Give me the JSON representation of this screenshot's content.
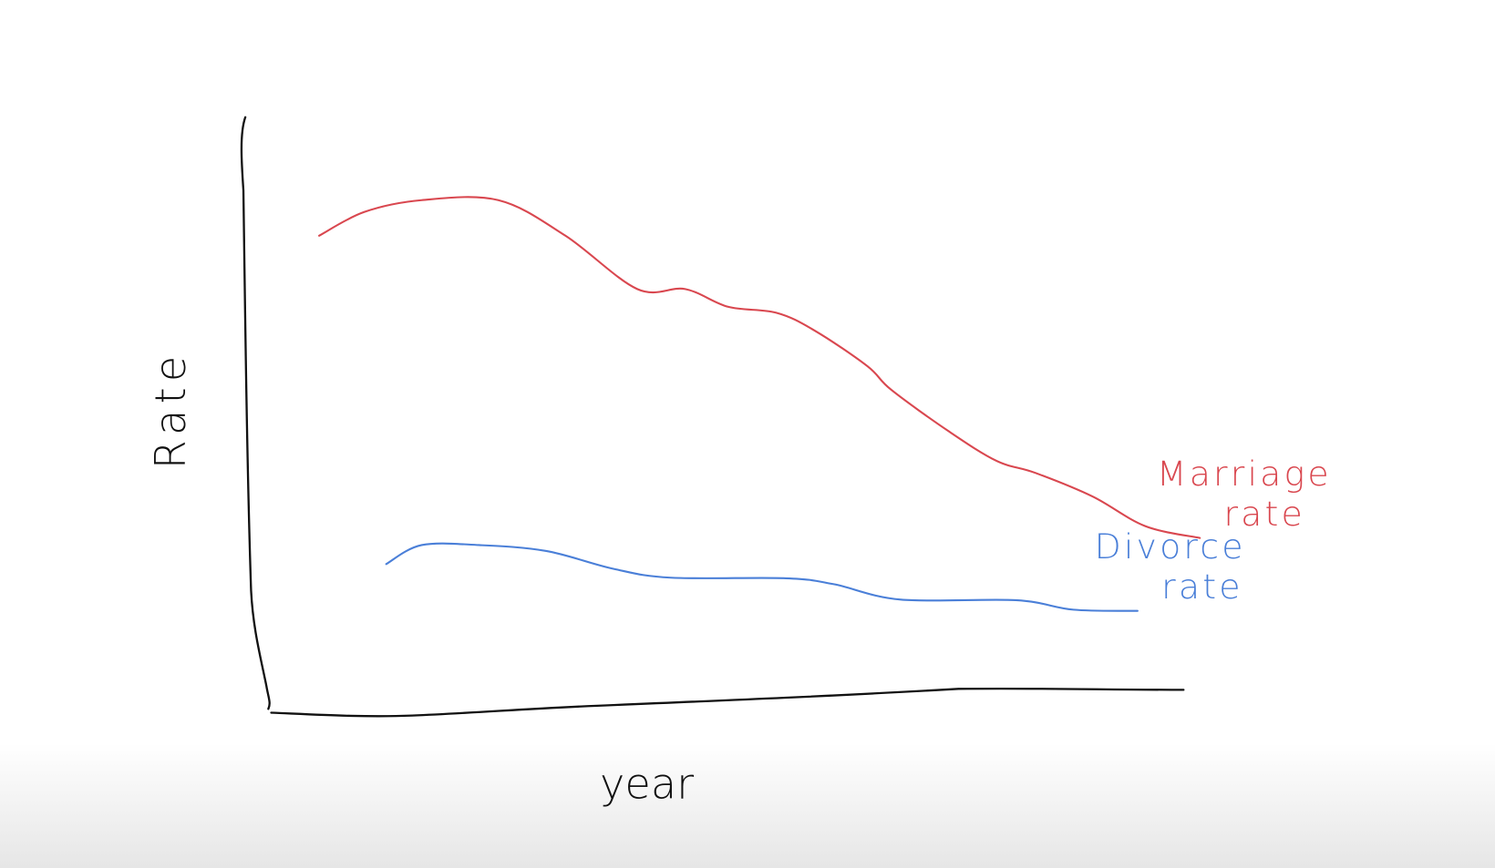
{
  "chart_data": {
    "type": "line",
    "x_label": "year",
    "y_label": "Rate",
    "xlim": [
      0,
      100
    ],
    "ylim": [
      0,
      100
    ],
    "series": [
      {
        "name": "Marriage rate",
        "color": "#d9474f",
        "x": [
          5.0,
          9.7,
          15.7,
          23.7,
          30.7,
          38.2,
          43.2,
          47.7,
          52.7,
          56.7,
          62.2,
          64.7,
          70.7,
          75.7,
          79.7,
          85.7,
          91.2,
          96.9
        ],
        "values": [
          80,
          84,
          86,
          86,
          80,
          71,
          71,
          68,
          67,
          64,
          58,
          54,
          47,
          42,
          40,
          36,
          31,
          29
        ]
      },
      {
        "name": "Divorce rate",
        "color": "#4a7fd8",
        "x": [
          12.0,
          15.7,
          21.7,
          28.7,
          35.7,
          41.7,
          53.7,
          58.7,
          65.7,
          77.7,
          83.7,
          90.4
        ],
        "values": [
          24.6,
          27.8,
          27.8,
          26.8,
          23.8,
          22.3,
          22.2,
          21.2,
          18.6,
          18.5,
          16.9,
          16.7
        ]
      }
    ]
  }
}
